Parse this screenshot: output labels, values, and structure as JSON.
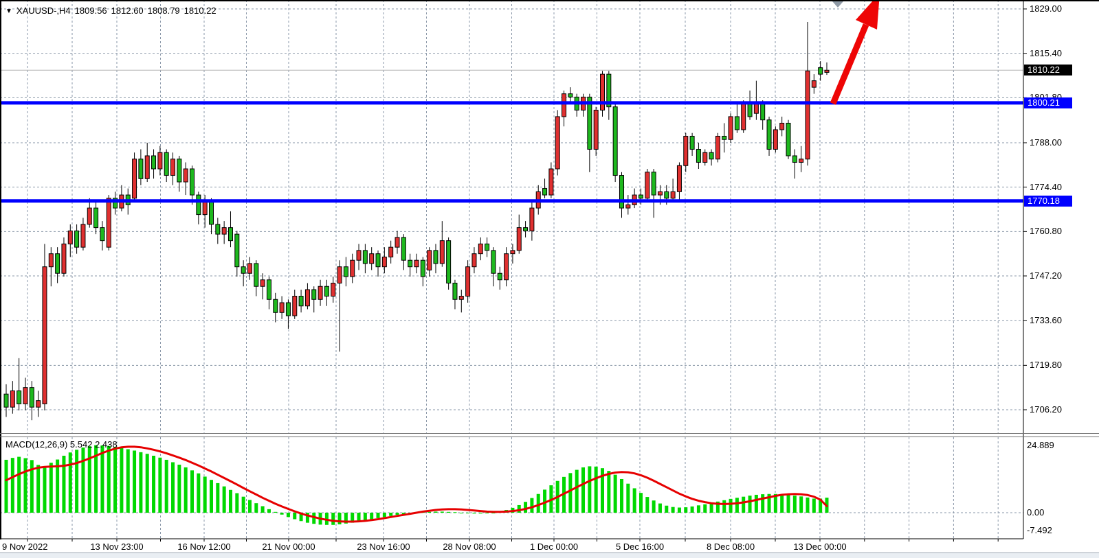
{
  "header": {
    "collapse_icon": "▼",
    "symbol_period": "XAUUSD-,H4",
    "open": "1809.56",
    "high": "1812.60",
    "low": "1808.79",
    "close": "1810.22"
  },
  "price_axis": {
    "labels": [
      "1829.00",
      "1815.40",
      "1801.80",
      "1788.00",
      "1774.40",
      "1760.80",
      "1747.20",
      "1733.60",
      "1719.80",
      "1706.20"
    ],
    "current_price_badge": {
      "text": "1810.22",
      "bg": "#000000"
    },
    "resistance_badge": {
      "text": "1800.21",
      "bg": "#0000ff"
    },
    "support_badge": {
      "text": "1770.18",
      "bg": "#0000ff"
    }
  },
  "time_axis": {
    "labels": [
      "9 Nov 2022",
      "13 Nov 23:00",
      "16 Nov 12:00",
      "21 Nov 00:00",
      "23 Nov 16:00",
      "28 Nov 08:00",
      "1 Dec 00:00",
      "5 Dec 16:00",
      "8 Dec 08:00",
      "13 Dec 00:00"
    ]
  },
  "macd_panel": {
    "label": "MACD(12,26,9) 5.542 2.438",
    "axis_max": "24.889",
    "axis_zero": "0.00",
    "axis_min": "-7.492"
  },
  "annotations": {
    "hlines": [
      {
        "name": "resistance-line",
        "price": 1800.21,
        "color": "#0000ff"
      },
      {
        "name": "support-line",
        "price": 1770.18,
        "color": "#0000ff"
      }
    ],
    "bid_line": {
      "price": 1810.22,
      "color": "#b0b0b0"
    },
    "arrow": {
      "color": "#ee0505"
    },
    "shift_marker": {
      "color": "#8f9aa6"
    }
  },
  "colors": {
    "bull_candle": "#e03030",
    "bear_candle": "#1eb81e",
    "candle_outline": "#000000",
    "macd_histogram": "#00d800",
    "macd_signal": "#e60000",
    "grid": "#8a97a8",
    "background": "#ffffff"
  },
  "chart_data": {
    "type": "candlestick+macd",
    "symbol": "XAUUSD",
    "period": "H4",
    "price_axis_top": 1829.0,
    "price_axis_bottom": 1706.2,
    "macd_axis": {
      "max": 24.889,
      "zero": 0.0,
      "min": -7.492
    },
    "candles_ohlc": [
      [
        1711,
        1714,
        1704,
        1707
      ],
      [
        1707,
        1715,
        1705,
        1712
      ],
      [
        1712,
        1722,
        1706,
        1708
      ],
      [
        1708,
        1716,
        1706,
        1713
      ],
      [
        1713,
        1715,
        1703,
        1707
      ],
      [
        1707,
        1712,
        1704,
        1709
      ],
      [
        1708,
        1757,
        1706,
        1750
      ],
      [
        1750,
        1756,
        1744,
        1754
      ],
      [
        1754,
        1756,
        1745,
        1748
      ],
      [
        1748,
        1759,
        1747,
        1757
      ],
      [
        1757,
        1763,
        1753,
        1761
      ],
      [
        1761,
        1763,
        1754,
        1756
      ],
      [
        1756,
        1765,
        1755,
        1763
      ],
      [
        1763,
        1771,
        1762,
        1768
      ],
      [
        1768,
        1770,
        1760,
        1762
      ],
      [
        1762,
        1764,
        1755,
        1758
      ],
      [
        1756,
        1772,
        1755,
        1771
      ],
      [
        1771,
        1773,
        1766,
        1768
      ],
      [
        1768,
        1775,
        1767,
        1772
      ],
      [
        1772,
        1774,
        1766,
        1769
      ],
      [
        1771,
        1785,
        1770,
        1783
      ],
      [
        1783,
        1786,
        1775,
        1777
      ],
      [
        1777,
        1788,
        1776,
        1784
      ],
      [
        1784,
        1786,
        1777,
        1780
      ],
      [
        1780,
        1787,
        1778,
        1785
      ],
      [
        1785,
        1786,
        1776,
        1778
      ],
      [
        1778,
        1785,
        1775,
        1783
      ],
      [
        1783,
        1784,
        1773,
        1776
      ],
      [
        1776,
        1782,
        1772,
        1780
      ],
      [
        1780,
        1781,
        1769,
        1772
      ],
      [
        1772,
        1773,
        1763,
        1766
      ],
      [
        1766,
        1772,
        1762,
        1770
      ],
      [
        1770,
        1771,
        1760,
        1763
      ],
      [
        1763,
        1765,
        1757,
        1760
      ],
      [
        1760,
        1764,
        1757,
        1762
      ],
      [
        1762,
        1767,
        1756,
        1758
      ],
      [
        1760,
        1761,
        1747,
        1750
      ],
      [
        1750,
        1752,
        1744,
        1748
      ],
      [
        1748,
        1753,
        1746,
        1751
      ],
      [
        1751,
        1752,
        1741,
        1744
      ],
      [
        1744,
        1748,
        1740,
        1746
      ],
      [
        1746,
        1747,
        1737,
        1740
      ],
      [
        1740,
        1742,
        1733,
        1736
      ],
      [
        1736,
        1741,
        1734,
        1739
      ],
      [
        1739,
        1740,
        1731,
        1735
      ],
      [
        1735,
        1743,
        1734,
        1741
      ],
      [
        1741,
        1743,
        1736,
        1738
      ],
      [
        1738,
        1745,
        1737,
        1743
      ],
      [
        1743,
        1744,
        1736,
        1740
      ],
      [
        1740,
        1746,
        1738,
        1744
      ],
      [
        1744,
        1746,
        1738,
        1741
      ],
      [
        1741,
        1747,
        1739,
        1745
      ],
      [
        1745,
        1752,
        1724,
        1750
      ],
      [
        1750,
        1753,
        1744,
        1747
      ],
      [
        1747,
        1754,
        1745,
        1752
      ],
      [
        1752,
        1757,
        1749,
        1755
      ],
      [
        1755,
        1757,
        1748,
        1751
      ],
      [
        1751,
        1756,
        1749,
        1754
      ],
      [
        1754,
        1755,
        1747,
        1750
      ],
      [
        1750,
        1756,
        1748,
        1753
      ],
      [
        1753,
        1758,
        1751,
        1756
      ],
      [
        1756,
        1761,
        1754,
        1759
      ],
      [
        1759,
        1760,
        1749,
        1752
      ],
      [
        1752,
        1754,
        1747,
        1750
      ],
      [
        1750,
        1754,
        1748,
        1752
      ],
      [
        1752,
        1753,
        1744,
        1747
      ],
      [
        1749,
        1756,
        1747,
        1755
      ],
      [
        1755,
        1757,
        1748,
        1751
      ],
      [
        1751,
        1764,
        1750,
        1758
      ],
      [
        1758,
        1759,
        1743,
        1745
      ],
      [
        1745,
        1746,
        1737,
        1740
      ],
      [
        1740,
        1743,
        1736,
        1741
      ],
      [
        1741,
        1752,
        1739,
        1750
      ],
      [
        1750,
        1756,
        1748,
        1754
      ],
      [
        1754,
        1759,
        1752,
        1757
      ],
      [
        1757,
        1759,
        1753,
        1755
      ],
      [
        1755,
        1756,
        1744,
        1748
      ],
      [
        1748,
        1750,
        1743,
        1746
      ],
      [
        1746,
        1756,
        1744,
        1754
      ],
      [
        1754,
        1757,
        1751,
        1755
      ],
      [
        1755,
        1766,
        1754,
        1762
      ],
      [
        1762,
        1764,
        1759,
        1761
      ],
      [
        1761,
        1770,
        1758,
        1768
      ],
      [
        1768,
        1775,
        1766,
        1773
      ],
      [
        1774,
        1777,
        1771,
        1772
      ],
      [
        1772,
        1782,
        1771,
        1780
      ],
      [
        1780,
        1798,
        1778,
        1796
      ],
      [
        1796,
        1804,
        1793,
        1803
      ],
      [
        1803,
        1805,
        1800,
        1802
      ],
      [
        1802,
        1803,
        1796,
        1798
      ],
      [
        1798,
        1803,
        1796,
        1802
      ],
      [
        1802,
        1803,
        1779,
        1786
      ],
      [
        1786,
        1799,
        1784,
        1798
      ],
      [
        1798,
        1810,
        1796,
        1809
      ],
      [
        1809,
        1810,
        1795,
        1799
      ],
      [
        1799,
        1800,
        1776,
        1778
      ],
      [
        1778,
        1779,
        1765,
        1768
      ],
      [
        1768,
        1772,
        1766,
        1769
      ],
      [
        1769,
        1774,
        1768,
        1772
      ],
      [
        1772,
        1774,
        1769,
        1771
      ],
      [
        1771,
        1780,
        1770,
        1779
      ],
      [
        1779,
        1780,
        1765,
        1772
      ],
      [
        1772,
        1775,
        1769,
        1773
      ],
      [
        1773,
        1775,
        1769,
        1771
      ],
      [
        1771,
        1777,
        1770,
        1773
      ],
      [
        1773,
        1782,
        1770,
        1781
      ],
      [
        1781,
        1791,
        1779,
        1790
      ],
      [
        1790,
        1791,
        1784,
        1786
      ],
      [
        1786,
        1788,
        1780,
        1782
      ],
      [
        1782,
        1786,
        1781,
        1785
      ],
      [
        1785,
        1786,
        1781,
        1783
      ],
      [
        1783,
        1791,
        1782,
        1790
      ],
      [
        1790,
        1794,
        1785,
        1789
      ],
      [
        1789,
        1797,
        1788,
        1796
      ],
      [
        1796,
        1800,
        1791,
        1792
      ],
      [
        1792,
        1801,
        1791,
        1800
      ],
      [
        1800,
        1804,
        1795,
        1796
      ],
      [
        1797,
        1807,
        1795,
        1800
      ],
      [
        1800,
        1801,
        1792,
        1795
      ],
      [
        1795,
        1796,
        1784,
        1786
      ],
      [
        1786,
        1793,
        1785,
        1792
      ],
      [
        1792,
        1796,
        1790,
        1794
      ],
      [
        1794,
        1795,
        1783,
        1784
      ],
      [
        1784,
        1786,
        1777,
        1782
      ],
      [
        1782,
        1787,
        1779,
        1783
      ],
      [
        1783,
        1825,
        1781,
        1810
      ],
      [
        1805,
        1809,
        1803,
        1807
      ],
      [
        1811,
        1813,
        1807,
        1809
      ],
      [
        1809.56,
        1812.6,
        1808.79,
        1810.22
      ]
    ],
    "macd": {
      "params": "12,26,9",
      "current_main": 5.542,
      "current_signal": 2.438,
      "histogram": [
        19.5,
        20.2,
        20.6,
        20.1,
        19.4,
        17.6,
        17.2,
        18.4,
        19.6,
        21.0,
        22.2,
        23.2,
        24.0,
        24.5,
        24.889,
        24.8,
        24.6,
        24.3,
        23.9,
        23.4,
        22.9,
        22.3,
        21.7,
        21.0,
        20.3,
        19.5,
        18.6,
        17.7,
        16.7,
        15.6,
        14.5,
        13.3,
        12.1,
        10.9,
        9.7,
        8.4,
        7.2,
        5.9,
        4.7,
        3.5,
        2.4,
        1.3,
        0.3,
        -0.7,
        -1.6,
        -2.4,
        -3.1,
        -3.7,
        -4.1,
        -4.4,
        -4.5,
        -4.5,
        -4.3,
        -4.0,
        -3.7,
        -3.3,
        -2.9,
        -2.5,
        -2.0,
        -1.6,
        -1.2,
        -0.8,
        -0.5,
        -0.2,
        0.0,
        0.2,
        0.3,
        0.4,
        0.4,
        0.3,
        0.2,
        0.0,
        -0.2,
        -0.3,
        -0.3,
        -0.2,
        0.0,
        0.4,
        1.0,
        1.8,
        2.8,
        4.0,
        5.4,
        6.9,
        8.5,
        10.1,
        11.7,
        13.2,
        14.6,
        15.8,
        16.7,
        17.1,
        17.0,
        16.4,
        15.4,
        14.0,
        12.4,
        10.7,
        9.0,
        7.3,
        5.8,
        4.5,
        3.4,
        2.6,
        2.1,
        1.9,
        2.0,
        2.3,
        2.7,
        3.1,
        3.6,
        4.1,
        4.6,
        5.1,
        5.5,
        5.9,
        6.3,
        6.6,
        6.8,
        6.9,
        6.9,
        6.8,
        6.6,
        6.3,
        6.0,
        5.6,
        5.2,
        5.2,
        5.542
      ],
      "signal": [
        12.0,
        13.1,
        14.2,
        15.2,
        16.0,
        16.6,
        16.9,
        17.0,
        17.1,
        17.3,
        17.7,
        18.3,
        19.1,
        20.0,
        21.0,
        22.0,
        22.9,
        23.6,
        24.1,
        24.3,
        24.3,
        24.1,
        23.7,
        23.2,
        22.6,
        21.9,
        21.1,
        20.3,
        19.4,
        18.4,
        17.4,
        16.3,
        15.2,
        14.0,
        12.8,
        11.6,
        10.4,
        9.1,
        7.9,
        6.7,
        5.5,
        4.4,
        3.3,
        2.3,
        1.4,
        0.5,
        -0.3,
        -1.0,
        -1.6,
        -2.2,
        -2.6,
        -3.0,
        -3.2,
        -3.3,
        -3.3,
        -3.2,
        -3.0,
        -2.7,
        -2.4,
        -2.0,
        -1.6,
        -1.2,
        -0.8,
        -0.4,
        0.0,
        0.4,
        0.7,
        1.0,
        1.2,
        1.3,
        1.3,
        1.2,
        1.0,
        0.8,
        0.6,
        0.4,
        0.3,
        0.3,
        0.4,
        0.6,
        0.9,
        1.4,
        2.0,
        2.8,
        3.7,
        4.7,
        5.8,
        7.0,
        8.2,
        9.4,
        10.6,
        11.7,
        12.7,
        13.6,
        14.3,
        14.8,
        15.0,
        14.9,
        14.5,
        13.8,
        12.9,
        11.8,
        10.6,
        9.4,
        8.2,
        7.0,
        6.0,
        5.1,
        4.4,
        3.9,
        3.5,
        3.3,
        3.2,
        3.3,
        3.5,
        3.8,
        4.2,
        4.7,
        5.2,
        5.7,
        6.2,
        6.6,
        6.8,
        6.9,
        6.8,
        6.5,
        5.9,
        4.8,
        2.438
      ]
    }
  }
}
